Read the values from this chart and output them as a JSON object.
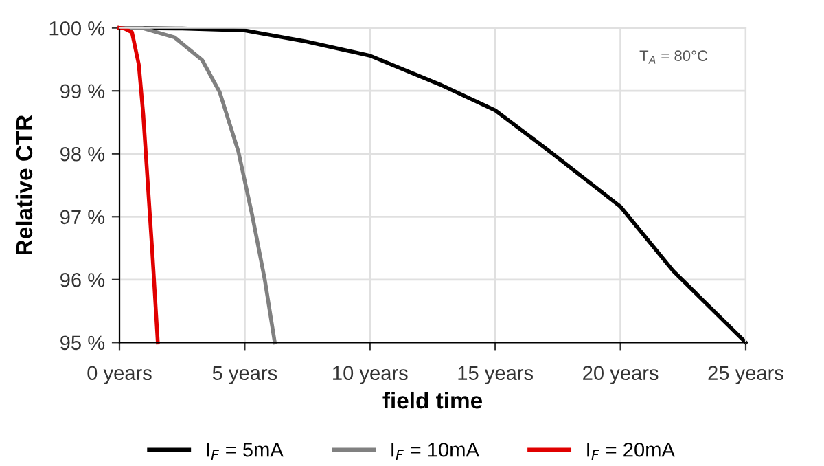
{
  "chart_data": {
    "type": "line",
    "xlabel": "field time",
    "ylabel": "Relative CTR",
    "annotations": [
      "T$_{A}$ = 80°C"
    ],
    "xlim": [
      0,
      25
    ],
    "ylim": [
      95,
      100
    ],
    "xticks": [
      {
        "value": 0,
        "label": "0 years"
      },
      {
        "value": 5,
        "label": "5 years"
      },
      {
        "value": 10,
        "label": "10 years"
      },
      {
        "value": 15,
        "label": "15 years"
      },
      {
        "value": 20,
        "label": "20 years"
      },
      {
        "value": 25,
        "label": "25 years"
      }
    ],
    "yticks": [
      {
        "value": 95,
        "label": "95 %"
      },
      {
        "value": 96,
        "label": "96 %"
      },
      {
        "value": 97,
        "label": "97 %"
      },
      {
        "value": 98,
        "label": "98 %"
      },
      {
        "value": 99,
        "label": "99 %"
      },
      {
        "value": 100,
        "label": "100 %"
      }
    ],
    "grid": true,
    "legend": "bottom",
    "marker": "none",
    "line_style": "solid",
    "series": [
      {
        "name": "I$_{F}$ = 5mA",
        "color": "#000000",
        "x": [
          0,
          2.5,
          5,
          7.5,
          10,
          12.8,
          15,
          17.2,
          20,
          22.1,
          25
        ],
        "values": [
          100,
          99.99,
          99.96,
          99.78,
          99.56,
          99.1,
          98.69,
          98.03,
          97.16,
          96.14,
          95
        ]
      },
      {
        "name": "I$_{F}$ = 10mA",
        "color": "#808080",
        "x": [
          0,
          0.9,
          2.2,
          3.3,
          4.0,
          4.75,
          5.3,
          5.8,
          6.2
        ],
        "values": [
          100,
          100,
          99.85,
          99.49,
          98.98,
          98.03,
          97.02,
          96.0,
          95
        ]
      },
      {
        "name": "I$_{F}$ = 20mA",
        "color": "#e00000",
        "x": [
          0,
          0.2,
          0.5,
          0.77,
          0.95,
          1.13,
          1.31,
          1.53
        ],
        "values": [
          100,
          99.99,
          99.93,
          99.42,
          98.62,
          97.53,
          96.44,
          95
        ]
      }
    ]
  }
}
